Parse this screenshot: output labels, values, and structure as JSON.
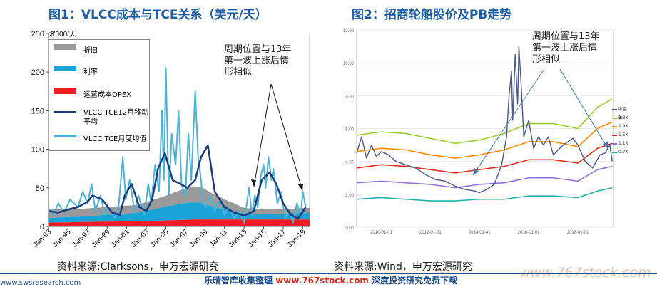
{
  "chart_data": [
    {
      "type": "area",
      "title": "图1：VLCC成本与TCE关系（美元/天）",
      "ylabel": "$'000/天",
      "ylim": [
        0,
        250
      ],
      "yticks": [
        "0",
        "50",
        "100",
        "150",
        "200",
        "250"
      ],
      "xticks": [
        "Jan-93",
        "Jan-95",
        "Jan-97",
        "Jan-99",
        "Jan-01",
        "Jan-03",
        "Jan-05",
        "Jan-07",
        "Jan-09",
        "Jan-11",
        "Jan-13",
        "Jan-15",
        "Jan-17",
        "Jan-19"
      ],
      "legend": [
        {
          "label": "折旧",
          "color": "#9a9a9a"
        },
        {
          "label": "利率",
          "color": "#1aa3d6"
        },
        {
          "label": "运营成本OPEX",
          "color": "#ee1c25"
        },
        {
          "label": "VLCC TCE12月移动平均",
          "color": "#1f3a7a"
        },
        {
          "label": "VLCC TCE月度均值",
          "color": "#4bb4d6"
        }
      ],
      "series": [
        {
          "name": "运营成本OPEX",
          "x": [
            1993,
            1998,
            2003,
            2008,
            2013,
            2019.5
          ],
          "values": [
            5,
            6,
            7,
            9,
            9,
            9
          ]
        },
        {
          "name": "利率",
          "x": [
            1993,
            1996,
            1999,
            2002,
            2005,
            2007,
            2008.5,
            2010,
            2013,
            2016,
            2019.5
          ],
          "values": [
            6,
            7,
            9,
            11,
            18,
            22,
            22,
            16,
            8,
            7,
            9
          ]
        },
        {
          "name": "折旧",
          "x": [
            1993,
            1996,
            1999,
            2002,
            2005,
            2007,
            2008.5,
            2010,
            2013,
            2016,
            2019.5
          ],
          "values": [
            11,
            10,
            10,
            10,
            14,
            19,
            21,
            16,
            7,
            6,
            6
          ]
        },
        {
          "name": "VLCC TCE12月移动平均",
          "x": [
            1993,
            1994,
            1995,
            1996,
            1997,
            1997.5,
            1998.5,
            1999.5,
            2000.3,
            2000.8,
            2001.5,
            2002.3,
            2003,
            2003.6,
            2004.2,
            2004.9,
            2005.7,
            2006.5,
            2007.2,
            2008,
            2008.6,
            2009.3,
            2010,
            2011,
            2012,
            2013,
            2014,
            2014.8,
            2015.6,
            2016.3,
            2017,
            2017.8,
            2018.5,
            2019.3
          ],
          "values": [
            20,
            18,
            22,
            25,
            32,
            40,
            35,
            18,
            15,
            40,
            55,
            25,
            20,
            35,
            75,
            95,
            60,
            55,
            50,
            60,
            90,
            105,
            45,
            25,
            18,
            14,
            20,
            60,
            70,
            55,
            30,
            15,
            10,
            25
          ]
        },
        {
          "name": "VLCC TCE月度均值",
          "x": [
            1993,
            1993.5,
            1994,
            1994.6,
            1995.2,
            1996,
            1996.5,
            1997,
            1997.4,
            1997.8,
            1998.3,
            1998.8,
            1999.2,
            1999.8,
            2000.2,
            2000.6,
            2000.9,
            2001.3,
            2001.8,
            2002.2,
            2002.8,
            2003.2,
            2003.5,
            2003.9,
            2004.3,
            2004.6,
            2004.8,
            2005,
            2005.3,
            2005.6,
            2006,
            2006.3,
            2006.6,
            2007,
            2007.3,
            2007.6,
            2008,
            2008.3,
            2008.6,
            2008.8,
            2009.1,
            2009.5,
            2010,
            2010.5,
            2011,
            2011.5,
            2012,
            2012.5,
            2013,
            2013.5,
            2013.8,
            2014.1,
            2014.4,
            2014.7,
            2015,
            2015.2,
            2015.5,
            2015.8,
            2016,
            2016.4,
            2016.8,
            2017.2,
            2017.6,
            2018,
            2018.4,
            2018.8,
            2019,
            2019.3
          ],
          "values": [
            22,
            15,
            30,
            18,
            35,
            25,
            45,
            30,
            55,
            20,
            40,
            15,
            25,
            10,
            30,
            90,
            35,
            60,
            20,
            40,
            15,
            55,
            30,
            80,
            45,
            150,
            60,
            205,
            40,
            120,
            80,
            150,
            55,
            40,
            120,
            60,
            175,
            90,
            60,
            30,
            25,
            40,
            20,
            35,
            15,
            25,
            10,
            20,
            5,
            50,
            15,
            40,
            25,
            65,
            80,
            50,
            90,
            60,
            75,
            30,
            45,
            10,
            20,
            5,
            30,
            15,
            45,
            25
          ]
        }
      ]
    },
    {
      "type": "line",
      "title": "图2：招商轮船股价及PB走势",
      "ylim": [
        0,
        12
      ],
      "yticks": [
        "0.00",
        "2.00",
        "4.00",
        "6.00",
        "8.00",
        "10.00",
        "12.00"
      ],
      "xticks": [
        "2010-01-01",
        "2012-01-01",
        "2014-01-01",
        "2016-01-01",
        "2018-01-01"
      ],
      "legend": [
        {
          "label": "收盘价",
          "color": "#4a5a8a"
        },
        {
          "label": "2.3X",
          "color": "#9acd32"
        },
        {
          "label": "1.9X",
          "color": "#ff8c00"
        },
        {
          "label": "1.5X",
          "color": "#e0301e"
        },
        {
          "label": "1.1X",
          "color": "#9370db"
        },
        {
          "label": "0.7X",
          "color": "#20b2aa"
        }
      ],
      "series": [
        {
          "name": "2.3X",
          "x": [
            2009,
            2010,
            2011,
            2012,
            2013,
            2014,
            2015,
            2016,
            2017,
            2018,
            2018.8,
            2019.4
          ],
          "values": [
            5.6,
            5.8,
            5.7,
            5.4,
            5.1,
            5.3,
            5.7,
            6.3,
            6.3,
            6.0,
            7.3,
            7.8
          ]
        },
        {
          "name": "1.9X",
          "x": [
            2009,
            2010,
            2011,
            2012,
            2013,
            2014,
            2015,
            2016,
            2017,
            2018,
            2018.8,
            2019.4
          ],
          "values": [
            4.6,
            4.8,
            4.7,
            4.4,
            4.2,
            4.4,
            4.7,
            5.2,
            5.2,
            4.9,
            6.0,
            6.4
          ]
        },
        {
          "name": "1.5X",
          "x": [
            2009,
            2010,
            2011,
            2012,
            2013,
            2014,
            2015,
            2016,
            2017,
            2018,
            2018.8,
            2019.4
          ],
          "values": [
            3.6,
            3.8,
            3.7,
            3.5,
            3.3,
            3.5,
            3.7,
            4.1,
            4.1,
            3.9,
            4.8,
            5.1
          ]
        },
        {
          "name": "1.1X",
          "x": [
            2009,
            2010,
            2011,
            2012,
            2013,
            2014,
            2015,
            2016,
            2017,
            2018,
            2018.8,
            2019.4
          ],
          "values": [
            2.7,
            2.8,
            2.7,
            2.6,
            2.4,
            2.6,
            2.7,
            3.0,
            3.0,
            2.8,
            3.5,
            3.7
          ]
        },
        {
          "name": "0.7X",
          "x": [
            2009,
            2010,
            2011,
            2012,
            2013,
            2014,
            2015,
            2016,
            2017,
            2018,
            2018.8,
            2019.4
          ],
          "values": [
            1.7,
            1.8,
            1.7,
            1.6,
            1.6,
            1.7,
            1.7,
            1.9,
            1.9,
            1.8,
            2.2,
            2.4
          ]
        },
        {
          "name": "收盘价",
          "x": [
            2009,
            2009.2,
            2009.4,
            2009.6,
            2009.8,
            2010,
            2010.3,
            2010.6,
            2011,
            2011.4,
            2011.8,
            2012.2,
            2012.6,
            2013,
            2013.4,
            2013.8,
            2014,
            2014.3,
            2014.6,
            2014.9,
            2015.1,
            2015.2,
            2015.3,
            2015.35,
            2015.45,
            2015.55,
            2015.6,
            2015.7,
            2015.8,
            2016,
            2016.2,
            2016.4,
            2016.6,
            2016.8,
            2017,
            2017.4,
            2017.8,
            2018,
            2018.3,
            2018.6,
            2018.9,
            2019.1,
            2019.3,
            2019.4
          ],
          "values": [
            4.5,
            5.5,
            4.2,
            5.0,
            4.3,
            4.6,
            4.4,
            4.0,
            3.8,
            3.6,
            3.2,
            2.9,
            2.8,
            2.5,
            2.3,
            2.2,
            2.1,
            2.3,
            2.6,
            3.8,
            5.5,
            8.0,
            9.5,
            6.5,
            10.5,
            7.5,
            11.0,
            8.5,
            5.5,
            6.5,
            4.8,
            5.5,
            5.0,
            5.5,
            4.4,
            5.0,
            5.4,
            5.0,
            4.0,
            3.6,
            4.4,
            4.5,
            5.0,
            4.0
          ]
        }
      ]
    }
  ],
  "annotations": {
    "left": "周期位置与13年\n第一波上涨后情\n形相似",
    "right": "周期位置与13年\n第一波上涨后情\n形相似"
  },
  "sources": {
    "left": "资料来源:Clarksons，申万宏源研究",
    "right": "资料来源:Wind，申万宏源研究"
  },
  "footer": {
    "prefix": "乐晴智库收集整理",
    "url": "www.767stock.com",
    "suffix": "深度投资研究免费下载",
    "watermark": "www.767stock.com",
    "left_watermark": "www.swsresearch.com"
  }
}
